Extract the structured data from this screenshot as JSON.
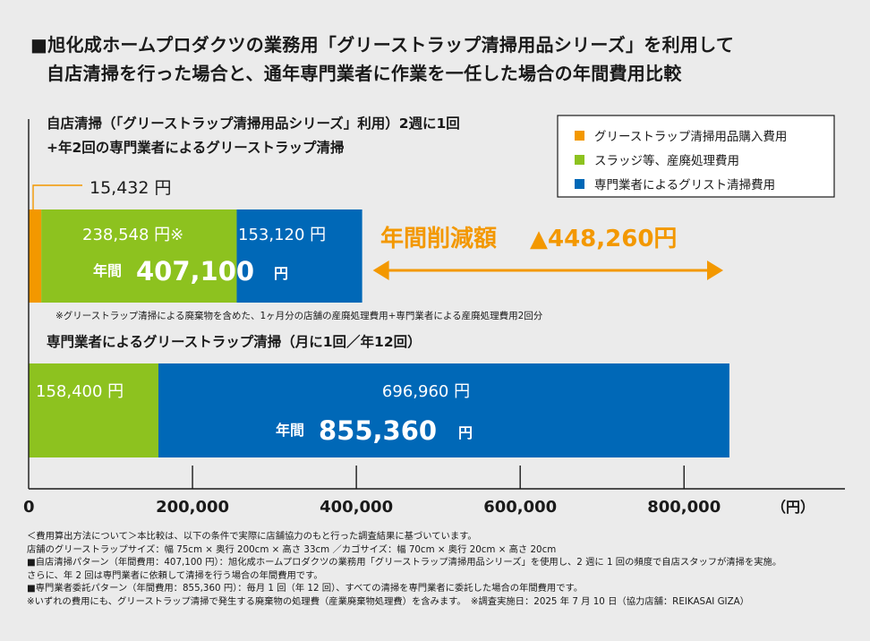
{
  "title": {
    "line1": "■旭化成ホームプロダクツの業務用「グリーストラップ清掃用品シリーズ」を利用して",
    "line2": "自店清掃を行った場合と、通年専門業者に作業を一任した場合の年間費用比較"
  },
  "legend": {
    "placement": "top-right"
  },
  "chart_data": {
    "type": "bar",
    "orientation": "horizontal",
    "stacked": true,
    "xlim": [
      0,
      1000000
    ],
    "xticks": [
      0,
      200000,
      400000,
      600000,
      800000
    ],
    "tick_labels": [
      "0",
      "200,000",
      "400,000",
      "600,000",
      "800,000"
    ],
    "unit_label": "（円）",
    "colors": [
      "#f39800",
      "#8dc21f",
      "#0068b7"
    ],
    "series": [
      {
        "name": "グリーストラップ清掃用品購入費用",
        "values": [
          15432,
          0
        ]
      },
      {
        "name": "スラッジ等、産廃処理費用",
        "values": [
          238548,
          158400
        ]
      },
      {
        "name": "専門業者によるグリスト清掃費用",
        "values": [
          153120,
          696960
        ]
      }
    ],
    "bars": [
      {
        "label_line1": "自店清掃（「グリーストラップ清掃用品シリーズ」利用）2週に1回",
        "label_line2": "+年2回の専門業者によるグリーストラップ清掃",
        "callout": "15,432 円",
        "segment_labels": [
          "",
          "238,548 円※",
          "153,120 円"
        ],
        "total_prefix": "年間",
        "total_value": "407,100",
        "total_unit": "円",
        "footnote": "※グリーストラップ清掃による廃棄物を含めた、1ヶ月分の店舗の産廃処理費用+専門業者による産廃処理費用2回分"
      },
      {
        "label_line1": "専門業者によるグリーストラップ清掃（月に1回／年12回）",
        "segment_labels": [
          "",
          "158,400 円",
          "696,960 円"
        ],
        "total_prefix": "年間",
        "total_value": "855,360",
        "total_unit": "円"
      }
    ],
    "annotation": {
      "label": "年間削減額",
      "value": "▲448,260円",
      "amount": 448260,
      "color": "#f39800"
    }
  },
  "notes": [
    "＜費用算出方法について＞本比較は、以下の条件で実際に店舗協力のもと行った調査結果に基づいています。",
    "店舗のグリーストラップサイズ：幅 75cm × 奥行 200cm × 高さ 33cm ／カゴサイズ：幅 70cm × 奥行 20cm × 高さ 20cm",
    "■自店清掃パターン（年間費用：407,100 円）：旭化成ホームプロダクツの業務用「グリーストラップ清掃用品シリーズ」を使用し、2 週に 1 回の頻度で自店スタッフが清掃を実施。",
    "さらに、年 2 回は専門業者に依頼して清掃を行う場合の年間費用です。",
    "■専門業者委託パターン（年間費用：855,360 円）：毎月 1 回（年 12 回）、すべての清掃を専門業者に委託した場合の年間費用です。",
    "※いずれの費用にも、グリーストラップ清掃で発生する廃棄物の処理費（産業廃棄物処理費）を含みます。　※調査実施日：2025 年 7 月 10 日（協力店舗：REIKASAI GIZA）"
  ]
}
